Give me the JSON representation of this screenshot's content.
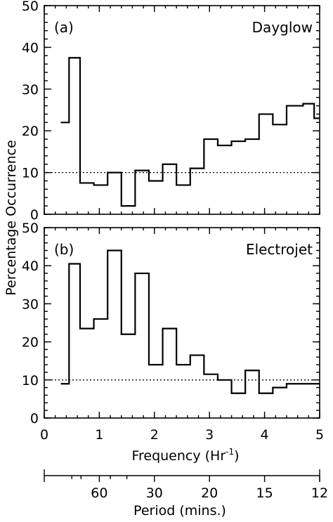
{
  "chart_data": {
    "type": "step-histogram",
    "ylabel": "Percentage Occurrence",
    "xlabel": "Frequency (Hr⁻¹)",
    "xlabel_parts": {
      "main": "Frequency (Hr",
      "sup": "-1",
      "close": ")"
    },
    "xlim": [
      0,
      5
    ],
    "x_ticks": [
      0,
      1,
      2,
      3,
      4,
      5
    ],
    "x_tick_labels": [
      "0",
      "1",
      "2",
      "3",
      "4",
      "5"
    ],
    "secondary_axis": {
      "label": "Period (mins.)",
      "ticks": [
        {
          "minutes": 60,
          "label": "60"
        },
        {
          "minutes": 30,
          "label": "30"
        },
        {
          "minutes": 20,
          "label": "20"
        },
        {
          "minutes": 15,
          "label": "15"
        },
        {
          "minutes": 12,
          "label": "12"
        }
      ]
    },
    "reference_line": 10,
    "bin_edges": [
      0.3,
      0.45,
      0.65,
      0.9,
      1.15,
      1.4,
      1.65,
      1.9,
      2.15,
      2.4,
      2.65,
      2.9,
      3.15,
      3.4,
      3.65,
      3.9,
      4.15,
      4.4,
      4.7,
      4.9,
      5.0
    ],
    "panels": [
      {
        "label": "(a)",
        "name": "Dayglow",
        "ylim": [
          0,
          50
        ],
        "y_ticks": [
          0,
          10,
          20,
          30,
          40,
          50
        ],
        "y_tick_labels": [
          "0",
          "10",
          "20",
          "30",
          "40",
          "50"
        ],
        "values": [
          22,
          37.5,
          7.5,
          7,
          10,
          2,
          10.5,
          8,
          12,
          7,
          11,
          18,
          16.5,
          17.5,
          18,
          24,
          21.5,
          26,
          26.5,
          23
        ]
      },
      {
        "label": "(b)",
        "name": "Electrojet",
        "ylim": [
          0,
          50
        ],
        "y_ticks": [
          0,
          10,
          20,
          30,
          40,
          50
        ],
        "y_tick_labels": [
          "0",
          "10",
          "20",
          "30",
          "40",
          "50"
        ],
        "values": [
          9,
          40.5,
          23.5,
          26,
          44,
          22,
          38,
          14,
          23.5,
          14,
          16.5,
          11.5,
          10,
          6.5,
          12.5,
          6.5,
          8,
          9,
          9,
          9
        ]
      }
    ]
  }
}
